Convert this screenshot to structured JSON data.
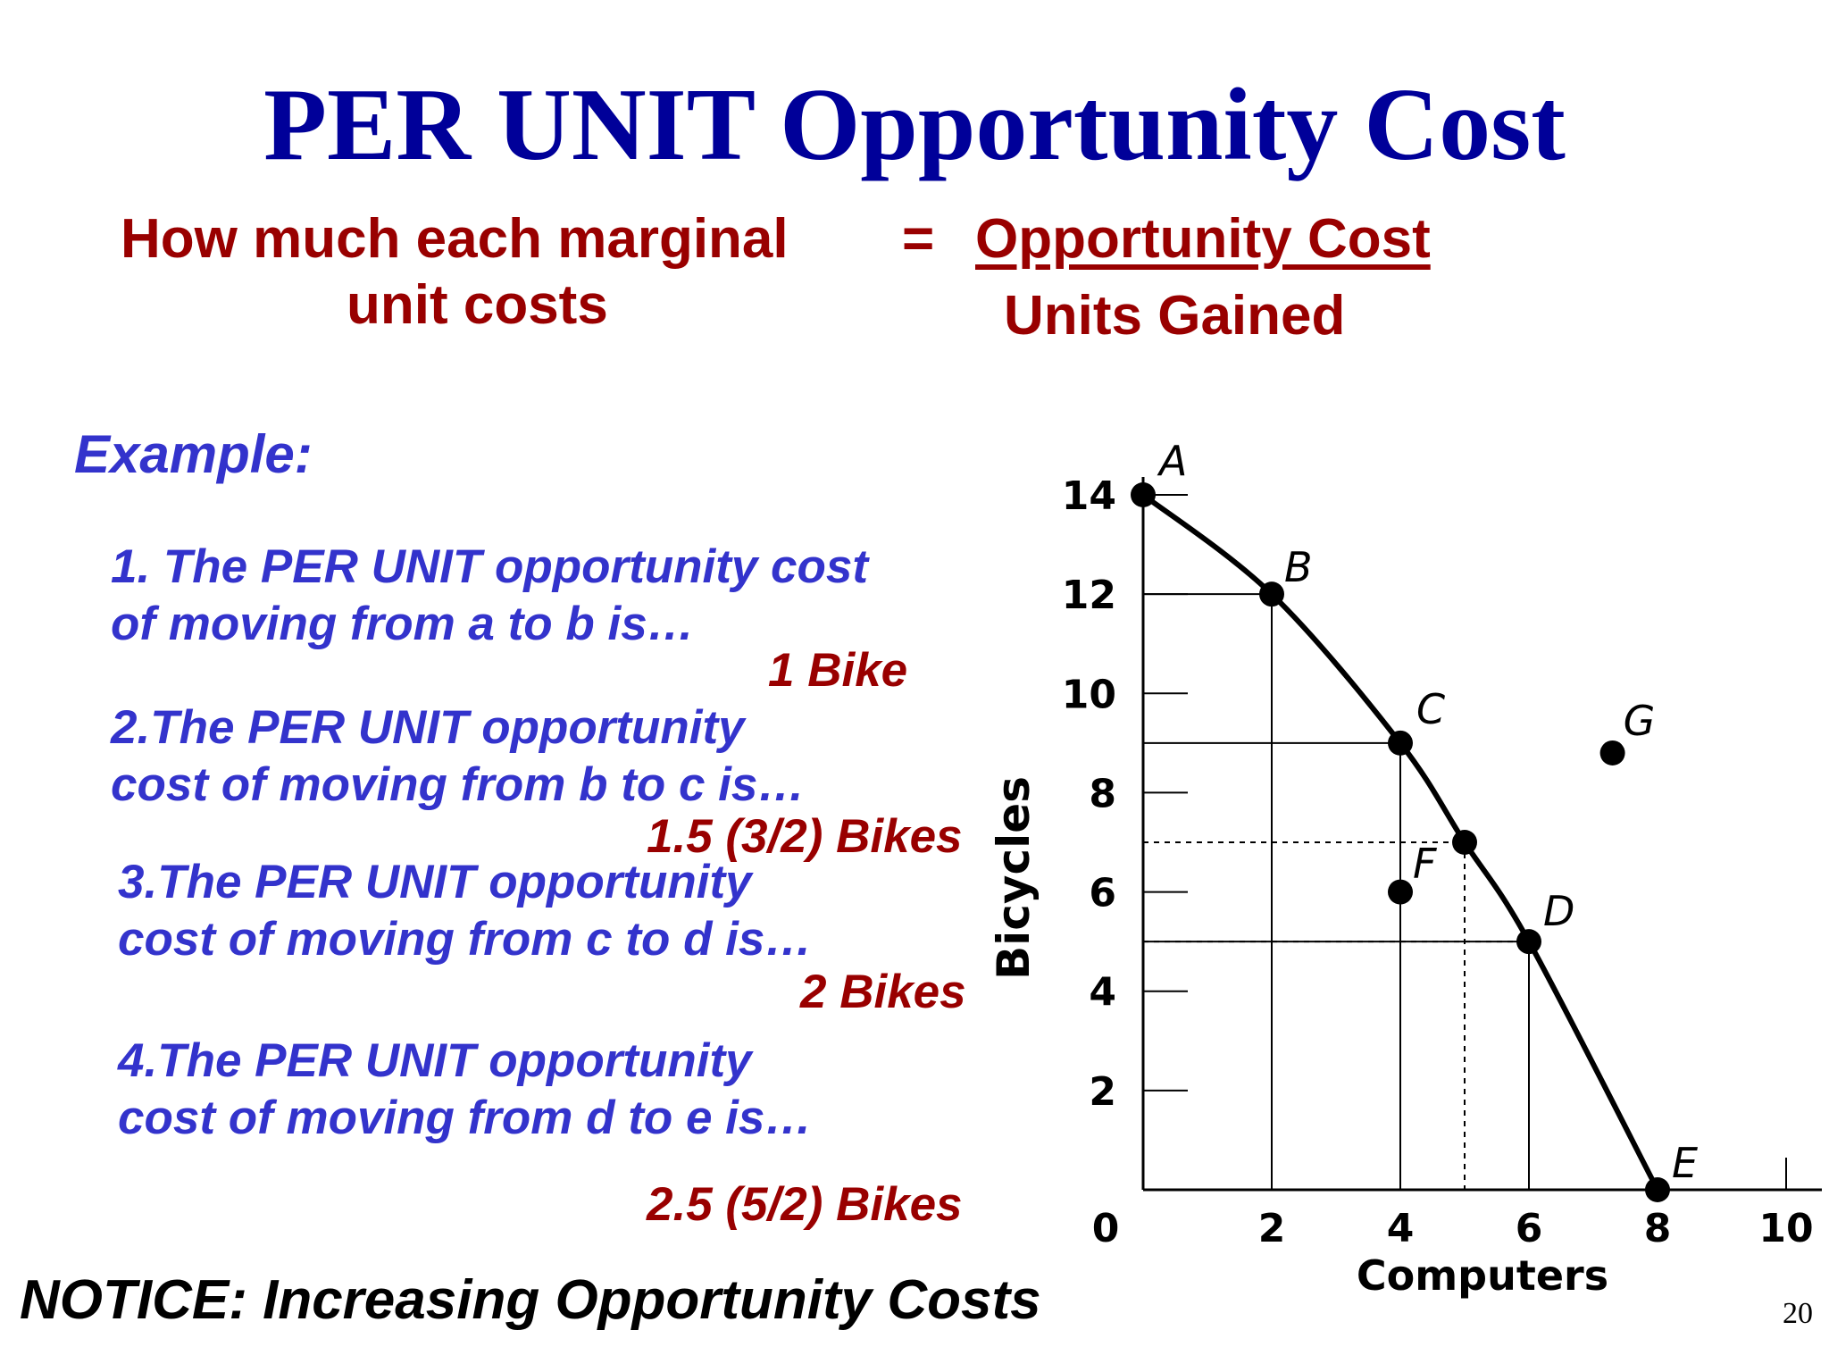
{
  "slide": {
    "title": "PER UNIT Opportunity Cost",
    "formula": {
      "left_line1": "How much each marginal",
      "left_line2": "unit costs",
      "equals": "=",
      "numerator": "Opportunity Cost",
      "denominator": "Units Gained"
    },
    "example_label": "Example:",
    "questions": [
      {
        "line1": "1. The PER UNIT opportunity cost",
        "line2": "of moving from a to b is…",
        "answer": "1 Bike"
      },
      {
        "line1": "2.The PER UNIT opportunity",
        "line2": "cost of moving from b to c is…",
        "answer": "1.5 (3/2) Bikes"
      },
      {
        "line1": "3.The PER UNIT opportunity",
        "line2": "cost of moving from c to d is…",
        "answer": "2 Bikes"
      },
      {
        "line1": "4.The PER UNIT opportunity",
        "line2": "cost of moving from d to e is…",
        "answer": "2.5 (5/2) Bikes"
      }
    ],
    "notice": "NOTICE: Increasing Opportunity Costs",
    "page_number": "20"
  },
  "colors": {
    "title": "#000099",
    "highlight": "#990000",
    "question_text": "#3333cc"
  },
  "chart_data": {
    "type": "line",
    "xlabel": "Computers",
    "ylabel": "Bicycles",
    "xlim": [
      0,
      10
    ],
    "ylim": [
      0,
      14
    ],
    "x_ticks": [
      "0",
      "2",
      "4",
      "6",
      "8",
      "10"
    ],
    "y_ticks": [
      "2",
      "4",
      "6",
      "8",
      "10",
      "12",
      "14"
    ],
    "curve": {
      "x": [
        0,
        2,
        4,
        5,
        6,
        8
      ],
      "y": [
        14,
        12,
        9,
        7,
        5,
        0
      ]
    },
    "points": [
      {
        "label": "A",
        "x": 0,
        "y": 14
      },
      {
        "label": "B",
        "x": 2,
        "y": 12
      },
      {
        "label": "C",
        "x": 4,
        "y": 9
      },
      {
        "label": "",
        "x": 5,
        "y": 7
      },
      {
        "label": "D",
        "x": 6,
        "y": 5
      },
      {
        "label": "E",
        "x": 8,
        "y": 0
      },
      {
        "label": "F",
        "x": 4,
        "y": 6
      },
      {
        "label": "G",
        "x": 7.3,
        "y": 8.8
      }
    ],
    "solid_guides": [
      {
        "x": 2,
        "y": 12
      },
      {
        "x": 4,
        "y": 9
      },
      {
        "x": 6,
        "y": 5
      }
    ],
    "dashed_guides": [
      {
        "x": 5,
        "y": 7
      },
      {
        "x": 6,
        "y": 5
      }
    ],
    "grid": false,
    "legend": "none"
  }
}
